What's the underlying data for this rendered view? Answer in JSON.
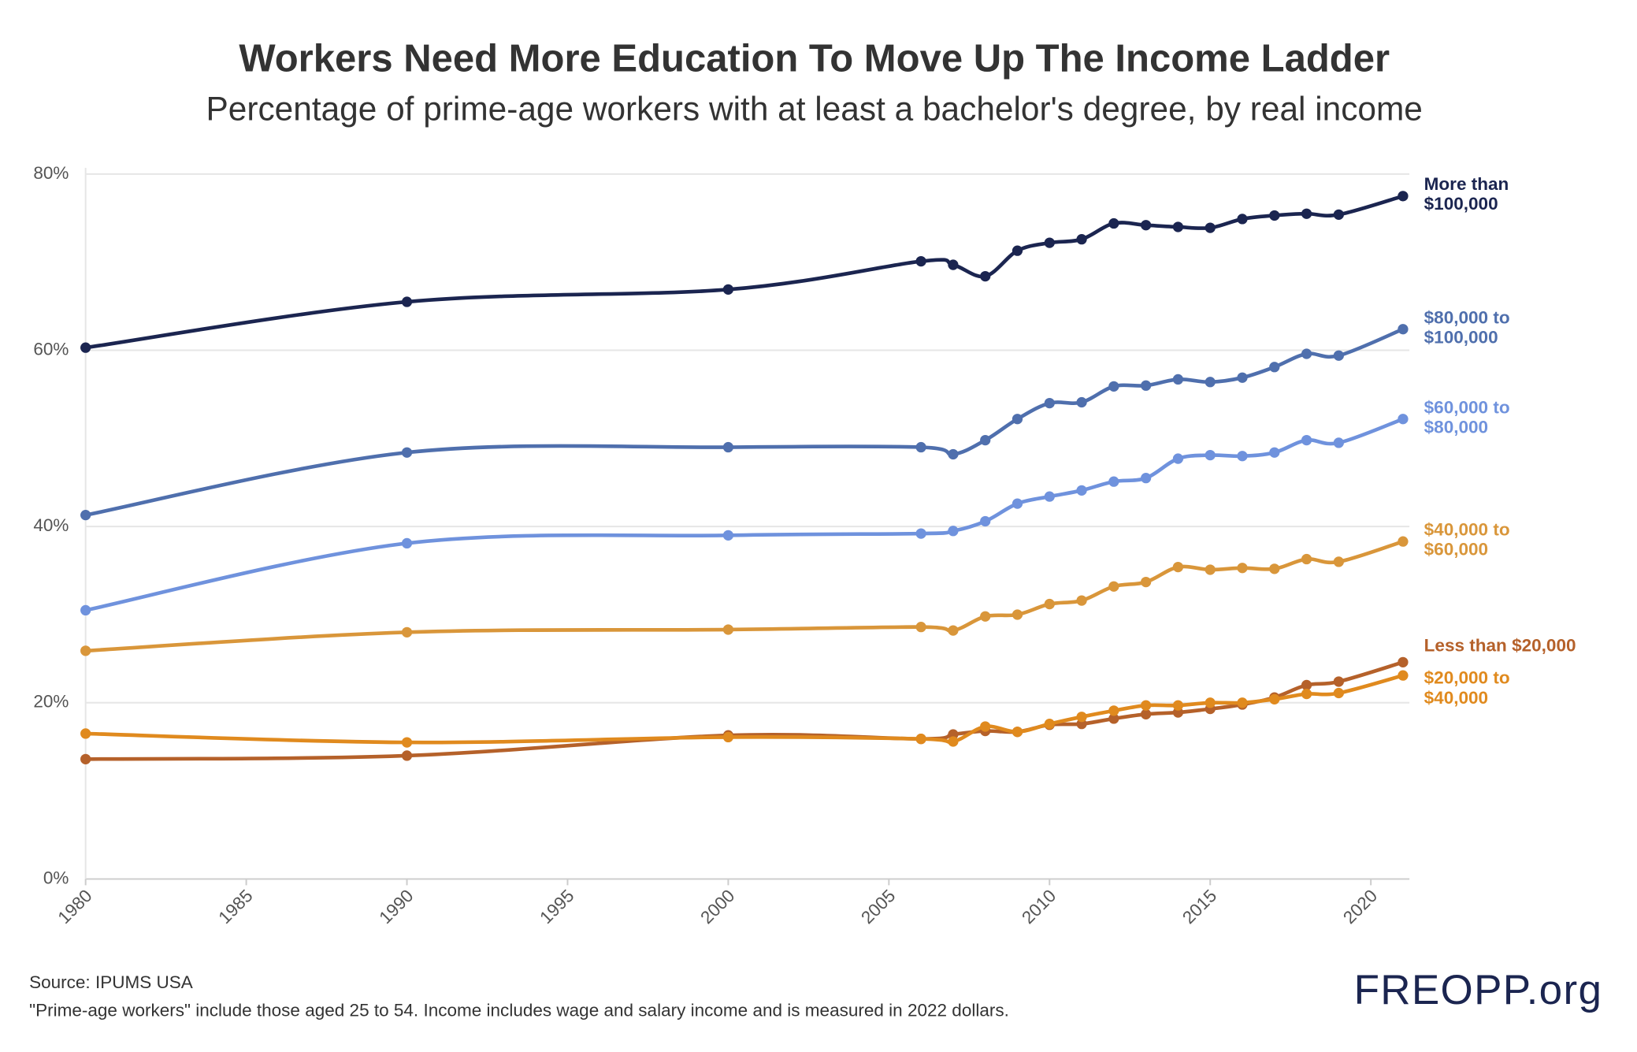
{
  "chart_data": {
    "type": "line",
    "title": "Workers Need More Education To Move Up The Income Ladder",
    "subtitle": "Percentage of prime-age workers with at least a bachelor's degree, by real income",
    "source": "Source: IPUMS USA",
    "note": "\"Prime-age workers\" include those aged 25 to 54. Income includes wage and salary income and is measured in 2022 dollars.",
    "logo": "FREOPP.org",
    "x": [
      1980,
      1990,
      2000,
      2006,
      2007,
      2008,
      2009,
      2010,
      2011,
      2012,
      2013,
      2014,
      2015,
      2016,
      2017,
      2018,
      2019,
      2021
    ],
    "series": [
      {
        "name": "More than $100,000",
        "color": "#1b2550",
        "values": [
          60.3,
          65.5,
          66.9,
          70.1,
          69.7,
          68.4,
          71.3,
          72.2,
          72.6,
          74.4,
          74.2,
          74.0,
          73.9,
          74.9,
          75.3,
          75.5,
          75.4,
          77.5
        ]
      },
      {
        "name": "$80,000 to $100,000",
        "color": "#4f6fad",
        "values": [
          41.3,
          48.4,
          49.0,
          49.0,
          48.2,
          49.8,
          52.2,
          54.0,
          54.1,
          55.9,
          56.0,
          56.7,
          56.4,
          56.9,
          58.1,
          59.6,
          59.4,
          62.4
        ]
      },
      {
        "name": "$60,000 to $80,000",
        "color": "#6f92dd",
        "values": [
          30.5,
          38.1,
          39.0,
          39.2,
          39.5,
          40.6,
          42.6,
          43.4,
          44.1,
          45.1,
          45.5,
          47.7,
          48.1,
          48.0,
          48.4,
          49.8,
          49.5,
          52.2
        ]
      },
      {
        "name": "$40,000 to $60,000",
        "color": "#d9963a",
        "values": [
          25.9,
          28.0,
          28.3,
          28.6,
          28.2,
          29.8,
          30.0,
          31.2,
          31.6,
          33.2,
          33.7,
          35.4,
          35.1,
          35.3,
          35.2,
          36.3,
          36.0,
          38.3
        ]
      },
      {
        "name": "Less than $20,000",
        "color": "#b5612a",
        "values": [
          13.6,
          14.0,
          16.3,
          15.9,
          16.4,
          16.8,
          16.7,
          17.5,
          17.6,
          18.2,
          18.7,
          18.9,
          19.3,
          19.8,
          20.6,
          22.0,
          22.4,
          24.6
        ]
      },
      {
        "name": "$20,000 to $40,000",
        "color": "#e08a1e",
        "values": [
          16.5,
          15.5,
          16.1,
          15.9,
          15.6,
          17.3,
          16.7,
          17.6,
          18.4,
          19.1,
          19.7,
          19.7,
          20.0,
          20.0,
          20.4,
          21.0,
          21.1,
          23.1
        ]
      }
    ],
    "xlim": [
      1980,
      2021.2
    ],
    "xticks": [
      1980,
      1985,
      1990,
      1995,
      2000,
      2005,
      2010,
      2015,
      2020
    ],
    "ylim": [
      0,
      80
    ],
    "yticks": [
      {
        "value": 0,
        "label": "0%"
      },
      {
        "value": 20,
        "label": "20%"
      },
      {
        "value": 40,
        "label": "40%"
      },
      {
        "value": 60,
        "label": "60%"
      },
      {
        "value": 80,
        "label": "80%"
      }
    ],
    "grid": true
  }
}
